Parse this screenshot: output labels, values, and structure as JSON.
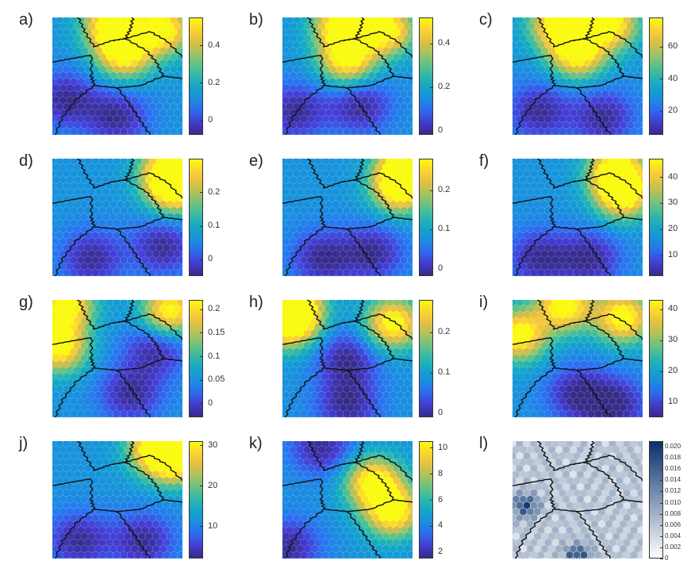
{
  "chart_data": [
    {
      "type": "heatmap",
      "label": "a)",
      "ticks": [
        {
          "label": "0.4",
          "v": 0.4
        },
        {
          "label": "0.2",
          "v": 0.2
        },
        {
          "label": "0",
          "v": 0
        }
      ],
      "range": [
        -0.08,
        0.55
      ],
      "colormap": "parula",
      "hot": [
        [
          0.45,
          0.05
        ],
        [
          0.85,
          0.1
        ],
        [
          0.55,
          0.3
        ]
      ],
      "cold": [
        [
          0.1,
          0.7
        ],
        [
          0.5,
          0.85
        ]
      ]
    },
    {
      "type": "heatmap",
      "label": "b)",
      "ticks": [
        {
          "label": "0.4",
          "v": 0.4
        },
        {
          "label": "0.2",
          "v": 0.2
        },
        {
          "label": "0",
          "v": 0
        }
      ],
      "range": [
        -0.02,
        0.52
      ],
      "colormap": "parula",
      "hot": [
        [
          0.45,
          0.05
        ],
        [
          0.8,
          0.1
        ],
        [
          0.5,
          0.35
        ]
      ],
      "cold": [
        [
          0.1,
          0.8
        ],
        [
          0.6,
          0.75
        ]
      ]
    },
    {
      "type": "heatmap",
      "label": "c)",
      "ticks": [
        {
          "label": "60",
          "v": 60
        },
        {
          "label": "40",
          "v": 40
        },
        {
          "label": "20",
          "v": 20
        }
      ],
      "range": [
        5,
        78
      ],
      "colormap": "parula",
      "hot": [
        [
          0.35,
          0.05
        ],
        [
          0.75,
          0.05
        ],
        [
          0.5,
          0.3
        ]
      ],
      "cold": [
        [
          0.2,
          0.8
        ],
        [
          0.7,
          0.85
        ]
      ]
    },
    {
      "type": "heatmap",
      "label": "d)",
      "ticks": [
        {
          "label": "0.2",
          "v": 0.2
        },
        {
          "label": "0.1",
          "v": 0.1
        },
        {
          "label": "0",
          "v": 0
        }
      ],
      "range": [
        -0.05,
        0.3
      ],
      "colormap": "parula",
      "hot": [
        [
          0.9,
          0.1
        ],
        [
          0.95,
          0.25
        ]
      ],
      "cold": [
        [
          0.85,
          0.75
        ],
        [
          0.3,
          0.85
        ]
      ]
    },
    {
      "type": "heatmap",
      "label": "e)",
      "ticks": [
        {
          "label": "0.2",
          "v": 0.2
        },
        {
          "label": "0.1",
          "v": 0.1
        },
        {
          "label": "0",
          "v": 0
        }
      ],
      "range": [
        -0.02,
        0.28
      ],
      "colormap": "parula",
      "hot": [
        [
          0.95,
          0.05
        ],
        [
          0.9,
          0.25
        ]
      ],
      "cold": [
        [
          0.3,
          0.85
        ],
        [
          0.7,
          0.8
        ]
      ]
    },
    {
      "type": "heatmap",
      "label": "f)",
      "ticks": [
        {
          "label": "40",
          "v": 40
        },
        {
          "label": "30",
          "v": 30
        },
        {
          "label": "20",
          "v": 20
        },
        {
          "label": "10",
          "v": 10
        }
      ],
      "range": [
        2,
        47
      ],
      "colormap": "parula",
      "hot": [
        [
          0.8,
          0.1
        ],
        [
          0.85,
          0.3
        ]
      ],
      "cold": [
        [
          0.2,
          0.85
        ],
        [
          0.6,
          0.85
        ]
      ]
    },
    {
      "type": "heatmap",
      "label": "g)",
      "ticks": [
        {
          "label": "0.2",
          "v": 0.2
        },
        {
          "label": "0.15",
          "v": 0.15
        },
        {
          "label": "0.1",
          "v": 0.1
        },
        {
          "label": "0.05",
          "v": 0.05
        },
        {
          "label": "0",
          "v": 0
        }
      ],
      "range": [
        -0.03,
        0.22
      ],
      "colormap": "parula",
      "hot": [
        [
          0.05,
          0.4
        ],
        [
          0.1,
          0.05
        ],
        [
          0.9,
          0.1
        ]
      ],
      "cold": [
        [
          0.6,
          0.8
        ],
        [
          0.8,
          0.4
        ]
      ]
    },
    {
      "type": "heatmap",
      "label": "h)",
      "ticks": [
        {
          "label": "0.2",
          "v": 0.2
        },
        {
          "label": "0.1",
          "v": 0.1
        },
        {
          "label": "0",
          "v": 0
        }
      ],
      "range": [
        -0.01,
        0.28
      ],
      "colormap": "parula",
      "hot": [
        [
          0.05,
          0.2
        ],
        [
          0.1,
          0.05
        ],
        [
          0.85,
          0.2
        ]
      ],
      "cold": [
        [
          0.5,
          0.5
        ],
        [
          0.5,
          0.9
        ]
      ]
    },
    {
      "type": "heatmap",
      "label": "i)",
      "ticks": [
        {
          "label": "40",
          "v": 40
        },
        {
          "label": "30",
          "v": 30
        },
        {
          "label": "20",
          "v": 20
        },
        {
          "label": "10",
          "v": 10
        }
      ],
      "range": [
        5,
        43
      ],
      "colormap": "parula",
      "hot": [
        [
          0.05,
          0.3
        ],
        [
          0.4,
          0.05
        ],
        [
          0.85,
          0.15
        ]
      ],
      "cold": [
        [
          0.5,
          0.8
        ],
        [
          0.8,
          0.9
        ]
      ]
    },
    {
      "type": "heatmap",
      "label": "j)",
      "ticks": [
        {
          "label": "30",
          "v": 30
        },
        {
          "label": "20",
          "v": 20
        },
        {
          "label": "10",
          "v": 10
        }
      ],
      "range": [
        2,
        31
      ],
      "colormap": "parula",
      "hot": [
        [
          0.8,
          0.05
        ],
        [
          0.95,
          0.15
        ]
      ],
      "cold": [
        [
          0.2,
          0.85
        ],
        [
          0.7,
          0.85
        ]
      ]
    },
    {
      "type": "heatmap",
      "label": "k)",
      "ticks": [
        {
          "label": "10",
          "v": 10
        },
        {
          "label": "8",
          "v": 8
        },
        {
          "label": "6",
          "v": 6
        },
        {
          "label": "4",
          "v": 4
        },
        {
          "label": "2",
          "v": 2
        }
      ],
      "range": [
        1.5,
        10.5
      ],
      "colormap": "parula",
      "hot": [
        [
          0.7,
          0.35
        ],
        [
          0.85,
          0.6
        ]
      ],
      "cold": [
        [
          0.3,
          0.05
        ],
        [
          0.05,
          0.9
        ]
      ]
    },
    {
      "type": "heatmap",
      "label": "l)",
      "ticks": [
        {
          "label": "0.020",
          "v": 0.02
        },
        {
          "label": "0.018",
          "v": 0.018
        },
        {
          "label": "0.016",
          "v": 0.016
        },
        {
          "label": "0.014",
          "v": 0.014
        },
        {
          "label": "0.012",
          "v": 0.012
        },
        {
          "label": "0.010",
          "v": 0.01
        },
        {
          "label": "0.008",
          "v": 0.008
        },
        {
          "label": "0.006",
          "v": 0.006
        },
        {
          "label": "0.004",
          "v": 0.004
        },
        {
          "label": "0.002",
          "v": 0.002
        },
        {
          "label": "0",
          "v": 0
        }
      ],
      "range": [
        0,
        0.021
      ],
      "colormap": "blues",
      "hot": [
        [
          0.1,
          0.55
        ],
        [
          0.5,
          0.98
        ]
      ],
      "cold": [
        [
          0.6,
          0.2
        ]
      ]
    }
  ],
  "colors": {
    "boundary": "#111111",
    "blues_low": "#ffffff",
    "blues_high": "#08306b"
  }
}
